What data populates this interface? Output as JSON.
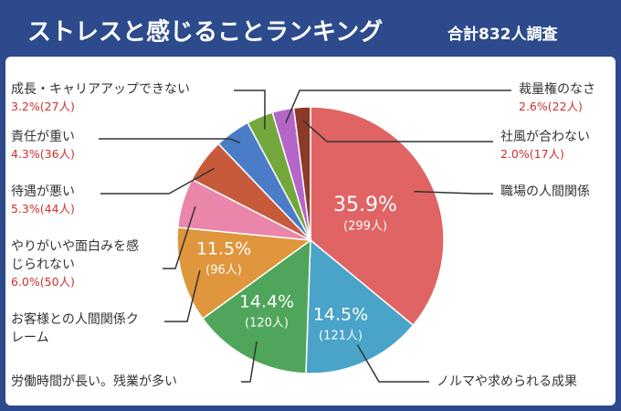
{
  "chart_data": {
    "type": "pie",
    "title": "ストレスと感じることランキング",
    "subtitle": "合計832人調査",
    "categories": [
      "職場の人間関係",
      "ノルマや求められる成果",
      "労働時間が長い。残業が多い",
      "お客様との人間関係クレーム",
      "やりがいや面白みを感じられない",
      "待遇が悪い",
      "責任が重い",
      "成長・キャリアアップできない",
      "裁量権のなさ",
      "社風が合わない"
    ],
    "values": [
      35.9,
      14.5,
      14.4,
      11.5,
      6.0,
      5.3,
      4.3,
      3.2,
      2.6,
      2.0
    ],
    "value_labels": [
      "35.9%",
      "14.5%",
      "14.4%",
      "11.5%",
      "6.0%",
      "5.3%",
      "4.3%",
      "3.2%",
      "2.6%",
      "2.0%"
    ],
    "counts": [
      299,
      121,
      120,
      96,
      50,
      44,
      36,
      27,
      22,
      17
    ],
    "count_labels": [
      "(299人)",
      "(121人)",
      "(120人)",
      "(96人)",
      "(50人)",
      "(44人)",
      "(36人)",
      "(27人)",
      "(22人)",
      "(17人)"
    ],
    "colors": [
      "#e06464",
      "#4aa3c8",
      "#4fa65a",
      "#df963c",
      "#ea86aa",
      "#c85a3c",
      "#4a7cc8",
      "#74a83c",
      "#b466c8",
      "#8c3a28"
    ]
  }
}
